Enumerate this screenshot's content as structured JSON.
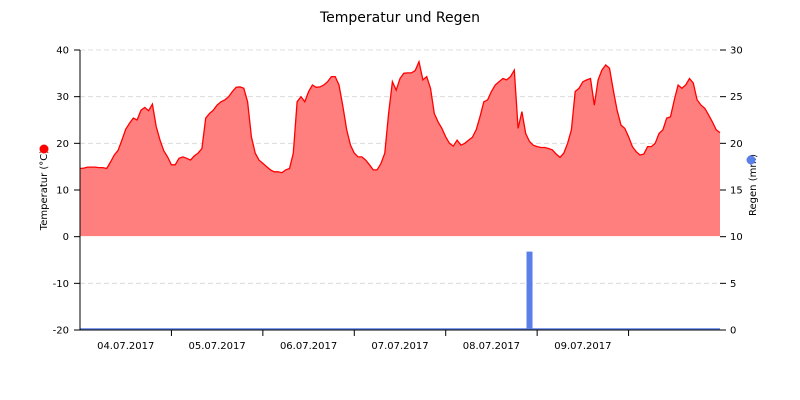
{
  "chart_data": {
    "type": "area",
    "title": "Temperatur und Regen",
    "grid": true,
    "x_axis": {
      "tick_labels": [
        "04.07.2017",
        "05.07.2017",
        "06.07.2017",
        "07.07.2017",
        "08.07.2017",
        "09.07.2017"
      ],
      "range": [
        "04.07.2017 00:00",
        "11.07.2017 00:00"
      ]
    },
    "y_left": {
      "label": "Temperatur (°C)",
      "range": [
        -20,
        40
      ],
      "ticks": [
        40,
        30,
        20,
        10,
        0,
        -10,
        -20
      ],
      "legend_color": "#ff0000"
    },
    "y_right": {
      "label": "Regen (mm)",
      "range": [
        0,
        30
      ],
      "ticks": [
        30,
        25,
        20,
        15,
        10,
        5,
        0
      ],
      "legend_color": "#5b7fe8"
    },
    "series": [
      {
        "type": "area",
        "axis": "left",
        "color": "#ff0000",
        "fill": "#ff7f7f",
        "hourly_by_day": [
          {
            "date": "04.07.2017",
            "values": [
              14.6,
              14.7,
              14.9,
              14.9,
              14.9,
              14.8,
              14.8,
              14.6,
              16,
              17.5,
              18.5,
              20.7,
              23,
              24.3,
              25.4,
              25,
              27.1,
              27.7,
              27,
              28.4,
              23.6,
              20.7,
              18.4,
              17.1
            ]
          },
          {
            "date": "05.07.2017",
            "values": [
              15.4,
              15.4,
              16.8,
              17.1,
              16.8,
              16.4,
              17.3,
              17.9,
              18.9,
              25.4,
              26.4,
              27.1,
              28.2,
              28.9,
              29.3,
              30,
              31.1,
              32,
              32.1,
              31.8,
              28.9,
              21.4,
              17.9,
              16.4
            ]
          },
          {
            "date": "06.07.2017",
            "values": [
              15.7,
              15,
              14.3,
              13.9,
              13.9,
              13.7,
              14.3,
              14.6,
              17.9,
              28.9,
              30,
              28.9,
              31.1,
              32.5,
              32,
              32.1,
              32.5,
              33.2,
              34.3,
              34.3,
              32.5,
              27.9,
              22.9,
              19.6
            ]
          },
          {
            "date": "07.07.2017",
            "values": [
              17.9,
              17.1,
              17.1,
              16.4,
              15.4,
              14.3,
              14.3,
              15.7,
              17.9,
              26.4,
              33.2,
              31.4,
              33.9,
              35,
              35.1,
              35.1,
              35.6,
              37.5,
              33.6,
              34.3,
              31.8,
              26.4,
              24.6,
              23.2
            ]
          },
          {
            "date": "08.07.2017",
            "values": [
              21.4,
              20,
              19.4,
              20.7,
              19.6,
              20,
              20.7,
              21.3,
              22.9,
              25.7,
              28.9,
              29.3,
              31.1,
              32.5,
              33.2,
              33.9,
              33.6,
              34.3,
              35.7,
              23.2,
              26.8,
              22.1,
              20.4,
              19.6
            ]
          },
          {
            "date": "09.07.2017",
            "values": [
              19.3,
              19.1,
              19.1,
              18.9,
              18.6,
              17.7,
              17,
              17.9,
              20,
              22.9,
              31.1,
              31.8,
              33.2,
              33.6,
              33.9,
              28.2,
              33.6,
              35.7,
              36.8,
              36.1,
              31.4,
              27.1,
              23.9,
              23.2
            ]
          },
          {
            "date": "10.07.2017",
            "values": [
              21.4,
              19.3,
              18.2,
              17.5,
              17.7,
              19.3,
              19.3,
              20,
              22.1,
              22.9,
              25.4,
              25.7,
              29.3,
              32.5,
              31.8,
              32.5,
              33.9,
              32.9,
              29.3,
              28.2,
              27.5,
              26.1,
              24.6,
              22.9,
              22.3
            ]
          }
        ]
      },
      {
        "type": "bar",
        "axis": "right",
        "color": "#5b7fe8",
        "points": [
          {
            "x": "08.07.2017 22:00",
            "value": 8.4
          }
        ]
      }
    ]
  }
}
